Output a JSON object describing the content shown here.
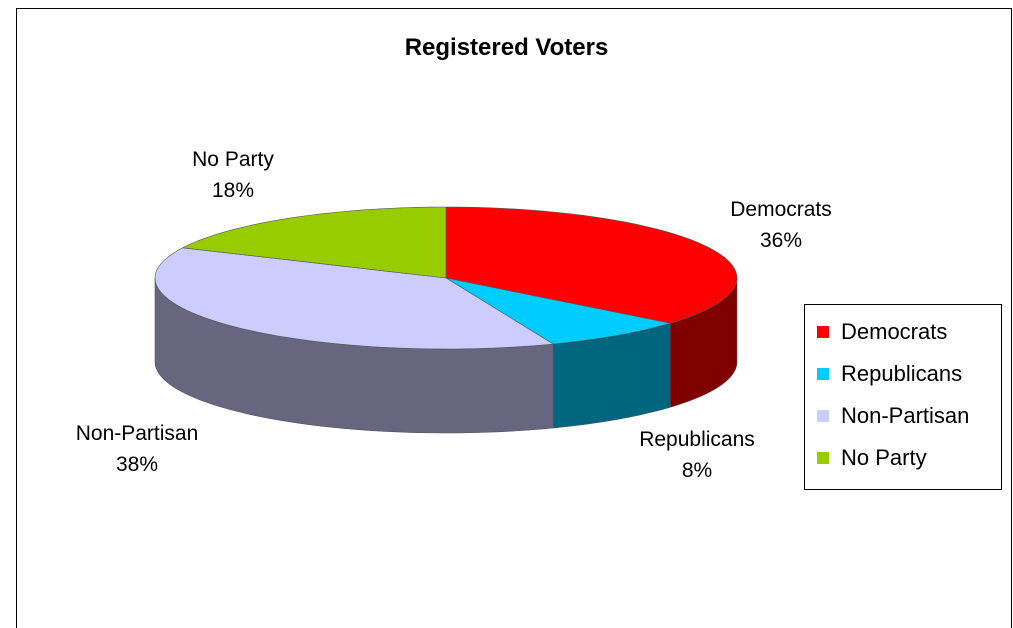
{
  "chart_data": {
    "type": "pie",
    "title": "Registered Voters",
    "slices": [
      {
        "name": "Democrats",
        "value": 36,
        "label_value": "36%",
        "color": "#FF0000",
        "side_color": "#800000"
      },
      {
        "name": "Republicans",
        "value": 8,
        "label_value": "8%",
        "color": "#00CCFF",
        "side_color": "#006680"
      },
      {
        "name": "Non-Partisan",
        "value": 38,
        "label_value": "38%",
        "color": "#CCCCFF",
        "side_color": "#666680"
      },
      {
        "name": "No Party",
        "value": 18,
        "label_value": "18%",
        "color": "#99CC00",
        "side_color": "#4D6600"
      }
    ],
    "legend": {
      "position": "right",
      "items": [
        "Democrats",
        "Republicans",
        "Non-Partisan",
        "No Party"
      ]
    },
    "style": "3d"
  }
}
